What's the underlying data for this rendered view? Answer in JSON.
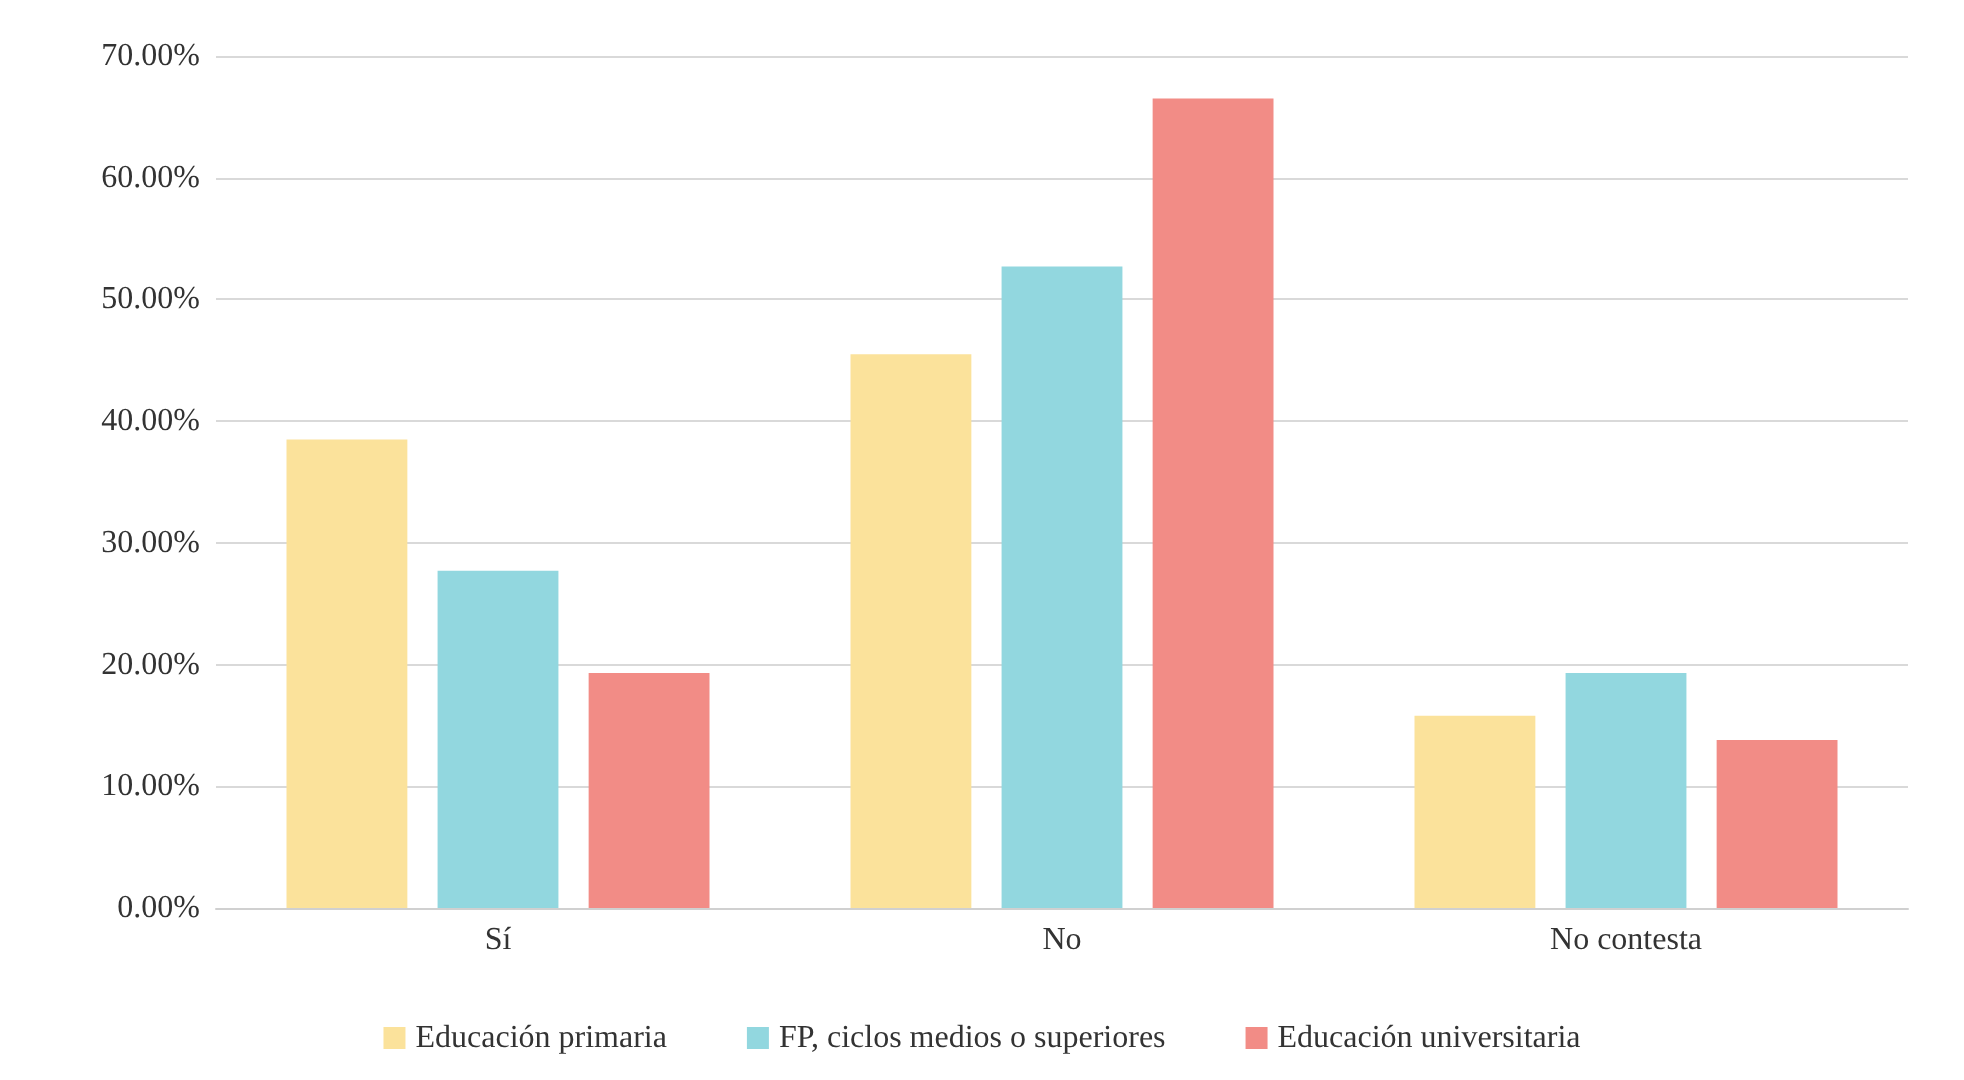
{
  "chart_data": {
    "type": "bar",
    "categories": [
      "Sí",
      "No",
      "No contesta"
    ],
    "series": [
      {
        "name": "Educación primaria",
        "color": "#fbe29b",
        "values": [
          38.5,
          45.5,
          15.8
        ]
      },
      {
        "name": "FP, ciclos medios o superiores",
        "color": "#92d7df",
        "values": [
          27.7,
          52.7,
          19.3
        ]
      },
      {
        "name": "Educación universitaria",
        "color": "#f28c86",
        "values": [
          19.3,
          66.5,
          13.8
        ]
      }
    ],
    "ylim": [
      0,
      70
    ],
    "yticks": [
      {
        "value": 0,
        "label": "0.00%"
      },
      {
        "value": 10,
        "label": "10.00%"
      },
      {
        "value": 20,
        "label": "20.00%"
      },
      {
        "value": 30,
        "label": "30.00%"
      },
      {
        "value": 40,
        "label": "40.00%"
      },
      {
        "value": 50,
        "label": "50.00%"
      },
      {
        "value": 60,
        "label": "60.00%"
      },
      {
        "value": 70,
        "label": "70.00%"
      }
    ],
    "grid": "y",
    "legend": "bottom"
  }
}
